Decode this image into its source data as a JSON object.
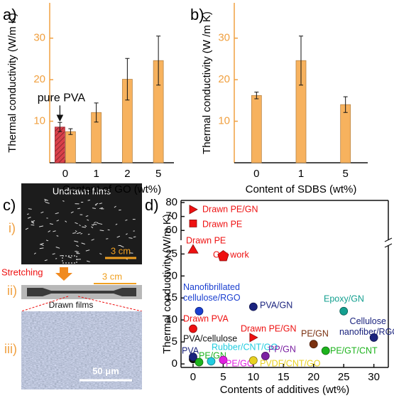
{
  "chart_data": [
    {
      "type": "bar",
      "panel_label": "a)",
      "x_label": "Content of GO (wt%)",
      "y_label": "Thermal conductivity (W/m K)",
      "categories": [
        "0",
        "1",
        "2",
        "5"
      ],
      "series": [
        {
          "name": "pure PVA",
          "color": "#d9404a",
          "hatch": true,
          "values": [
            8.6,
            null,
            null,
            null
          ],
          "errors": [
            1.1,
            null,
            null,
            null
          ]
        },
        {
          "color": "#f7b25e",
          "values": [
            7.5,
            12.1,
            20.1,
            24.6
          ],
          "errors": [
            0.7,
            2.3,
            5.0,
            5.9
          ]
        }
      ],
      "ylim": [
        0,
        38.5
      ],
      "yticks": [
        10,
        20,
        30
      ]
    },
    {
      "type": "bar",
      "panel_label": "b)",
      "x_label": "Content of SDBS (wt%)",
      "y_label": "Thermal conductivity (W /m K)",
      "categories": [
        "0",
        "1",
        "5"
      ],
      "series": [
        {
          "color": "#f7b25e",
          "values": [
            16.2,
            24.6,
            14.0
          ],
          "errors": [
            0.8,
            5.9,
            1.9
          ]
        }
      ],
      "ylim": [
        0,
        38.5
      ],
      "yticks": [
        10,
        20,
        30
      ]
    },
    {
      "type": "scatter",
      "panel_label": "d)",
      "x_label": "Contents of additives (wt%)",
      "y_label": "Thermal conductivity (W/m K)",
      "xlim": [
        -2,
        32.4
      ],
      "xticks": [
        0,
        5,
        10,
        15,
        20,
        25,
        30
      ],
      "ylim": [
        -0.8,
        27
      ],
      "ylim_upper": [
        53,
        81.5
      ],
      "yticks": [
        0,
        5,
        10,
        15,
        20,
        25,
        60,
        70,
        80
      ],
      "axis_break": true,
      "series": [
        {
          "name": "Drawn PE/GN",
          "color": "#ee1111",
          "marker": "triangle-right",
          "x": [
            0
          ],
          "values": [
            75
          ]
        },
        {
          "name": "Drawn PE",
          "color": "#ee1111",
          "marker": "square",
          "x": [
            0
          ],
          "values": [
            65
          ]
        },
        {
          "name": "Drawn PE",
          "color": "#ee1111",
          "marker": "triangle-up",
          "x": [
            0
          ],
          "values": [
            26
          ]
        },
        {
          "name": "Our work",
          "color": "#ee1111",
          "marker": "pentagon",
          "x": [
            5
          ],
          "values": [
            24.5
          ]
        },
        {
          "name": "Nanofibrillated cellulose/RGO",
          "color": "#1a3fd0",
          "marker": "circle",
          "x": [
            1
          ],
          "values": [
            12
          ]
        },
        {
          "name": "PVA/GN",
          "color": "#1a237e",
          "marker": "circle",
          "x": [
            10
          ],
          "values": [
            13
          ]
        },
        {
          "name": "Drawn PVA",
          "color": "#ee1111",
          "marker": "circle",
          "x": [
            0
          ],
          "values": [
            8
          ]
        },
        {
          "name": "PVA/cellulose",
          "color": "#111111",
          "marker": "circle",
          "x": [
            0
          ],
          "values": [
            1.1
          ]
        },
        {
          "name": "PVA",
          "color": "#1a237e",
          "marker": "circle",
          "x": [
            0
          ],
          "values": [
            1.6
          ]
        },
        {
          "name": "PE/GN",
          "color": "#1db31d",
          "marker": "circle",
          "x": [
            1
          ],
          "values": [
            0.4
          ]
        },
        {
          "name": "Rubber/CNT/GO",
          "color": "#22cde0",
          "marker": "circle",
          "x": [
            3
          ],
          "values": [
            0.6
          ]
        },
        {
          "name": "PE/GO",
          "color": "#e020e0",
          "marker": "circle",
          "x": [
            5
          ],
          "values": [
            0.9
          ]
        },
        {
          "name": "PVDF/CNT/GO",
          "color": "#e8d020",
          "marker": "circle",
          "x": [
            10
          ],
          "values": [
            0.8
          ]
        },
        {
          "name": "PP/GN",
          "color": "#7b1fa2",
          "marker": "circle",
          "x": [
            12
          ],
          "values": [
            1.8
          ]
        },
        {
          "name": "Drawn PE/GN",
          "color": "#ee1111",
          "marker": "triangle-right",
          "x": [
            10
          ],
          "values": [
            6
          ]
        },
        {
          "name": "PE/GN",
          "color": "#7a3010",
          "marker": "circle",
          "x": [
            20
          ],
          "values": [
            4.5
          ]
        },
        {
          "name": "PE/GT/CNT",
          "color": "#1db31d",
          "marker": "circle",
          "x": [
            22
          ],
          "values": [
            3
          ]
        },
        {
          "name": "Epoxy/GN",
          "color": "#14a090",
          "marker": "circle",
          "x": [
            25
          ],
          "values": [
            12
          ]
        },
        {
          "name": "Cellulose nanofiber/RGO",
          "color": "#1a237e",
          "marker": "circle",
          "x": [
            30
          ],
          "values": [
            6
          ]
        }
      ]
    }
  ],
  "panel_c": {
    "panel_label": "c)",
    "step_1": "i)",
    "undrawn": "Undrawn films",
    "scale_1": "3 cm",
    "stretching": "Stretching",
    "step_2": "ii)",
    "scale_2": "3 cm",
    "drawn": "Drawn films",
    "step_3": "iii)",
    "scale_3": "50 μm"
  }
}
